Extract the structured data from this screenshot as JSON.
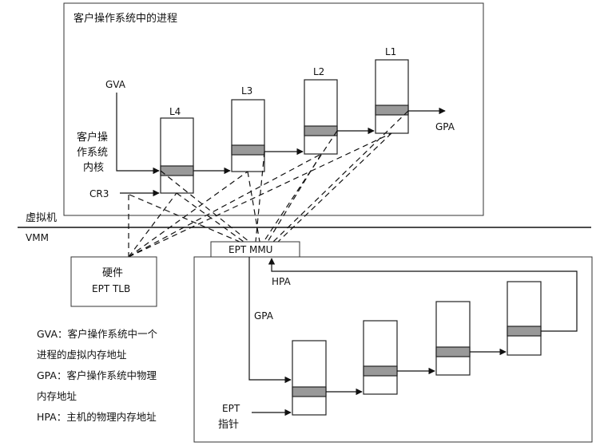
{
  "guest_box": {
    "title": "客户操作系统中的进程"
  },
  "guest_kernel": {
    "lines": [
      "客户操",
      "作系统",
      "内核"
    ]
  },
  "labels": {
    "gva": "GVA",
    "cr3": "CR3",
    "gpa_out": "GPA",
    "vm": "虚拟机",
    "vmm": "VMM",
    "ept_mmu": "EPT MMU",
    "hpa": "HPA",
    "gpa_in": "GPA",
    "ept_pointer_lines": [
      "EPT",
      "指针"
    ]
  },
  "page_tables": [
    {
      "level": "L4"
    },
    {
      "level": "L3"
    },
    {
      "level": "L2"
    },
    {
      "level": "L1"
    }
  ],
  "tlb_box": {
    "lines": [
      "硬件",
      "EPT TLB"
    ]
  },
  "legend": [
    "GVA：客户操作系统中一个",
    "进程的虚拟内存地址",
    "GPA：客户操作系统中物理",
    "内存地址",
    "HPA：主机的物理内存地址"
  ]
}
